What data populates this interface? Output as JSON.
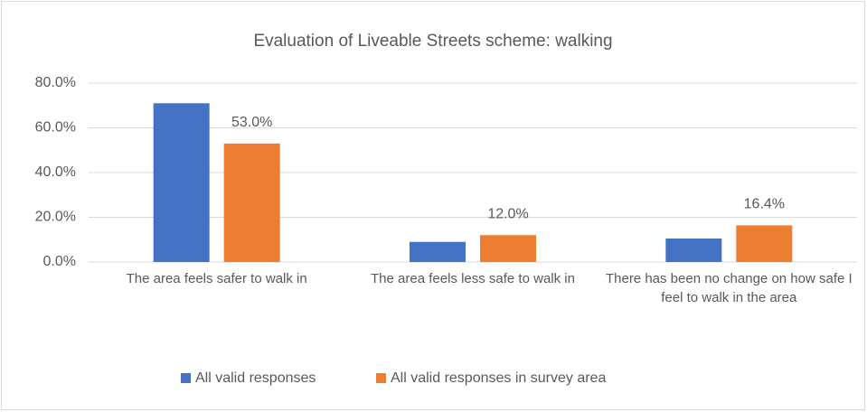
{
  "chart_data": {
    "type": "bar",
    "title": "Evaluation of Liveable Streets scheme: walking",
    "categories": [
      "The area feels safer to walk in",
      "The area feels less safe to walk in",
      "There has been no change on how safe I feel to walk in the area"
    ],
    "series": [
      {
        "name": "All valid responses",
        "color": "#4472c4",
        "values": [
          71.0,
          9.0,
          10.5
        ]
      },
      {
        "name": "All valid responses in survey area",
        "color": "#ed7d31",
        "values": [
          53.0,
          12.0,
          16.4
        ],
        "value_labels": [
          "53.0%",
          "12.0%",
          "16.4%"
        ]
      }
    ],
    "ylim": [
      0,
      80
    ],
    "yticks": [
      {
        "value": 0,
        "label": "0.0%"
      },
      {
        "value": 20,
        "label": "20.0%"
      },
      {
        "value": 40,
        "label": "40.0%"
      },
      {
        "value": 60,
        "label": "60.0%"
      },
      {
        "value": 80,
        "label": "80.0%"
      }
    ],
    "grid": true,
    "legend": "bottom"
  }
}
